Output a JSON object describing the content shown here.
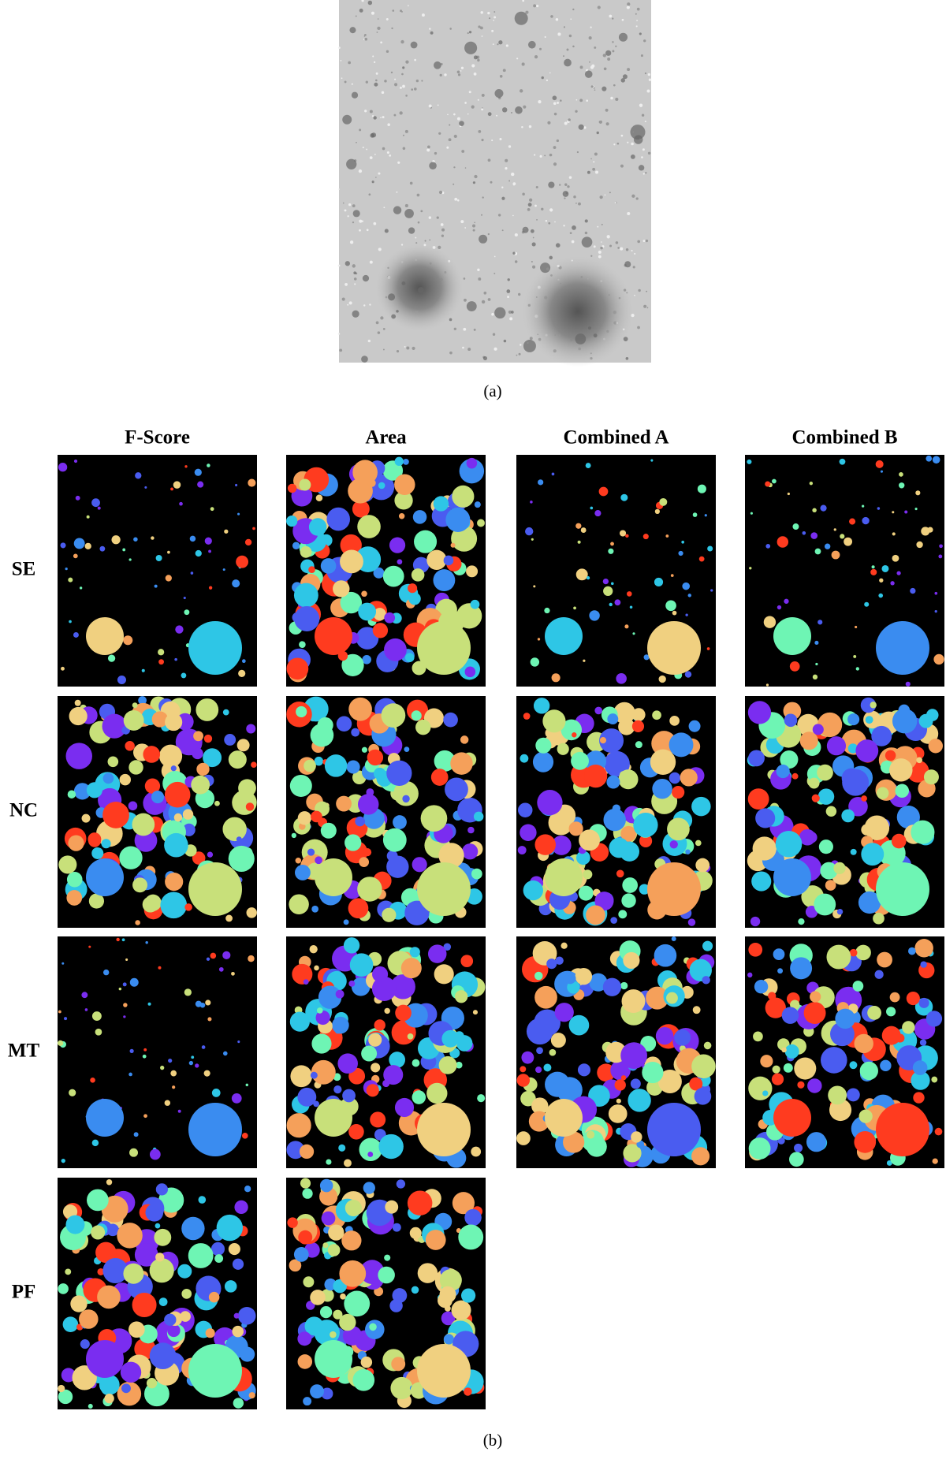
{
  "figure": {
    "subfigure_a": {
      "caption": "(a)"
    },
    "subfigure_b": {
      "caption": "(b)",
      "columns": [
        "F-Score",
        "Area",
        "Combined A",
        "Combined B"
      ],
      "rows": [
        "SE",
        "NC",
        "MT",
        "PF"
      ]
    }
  }
}
